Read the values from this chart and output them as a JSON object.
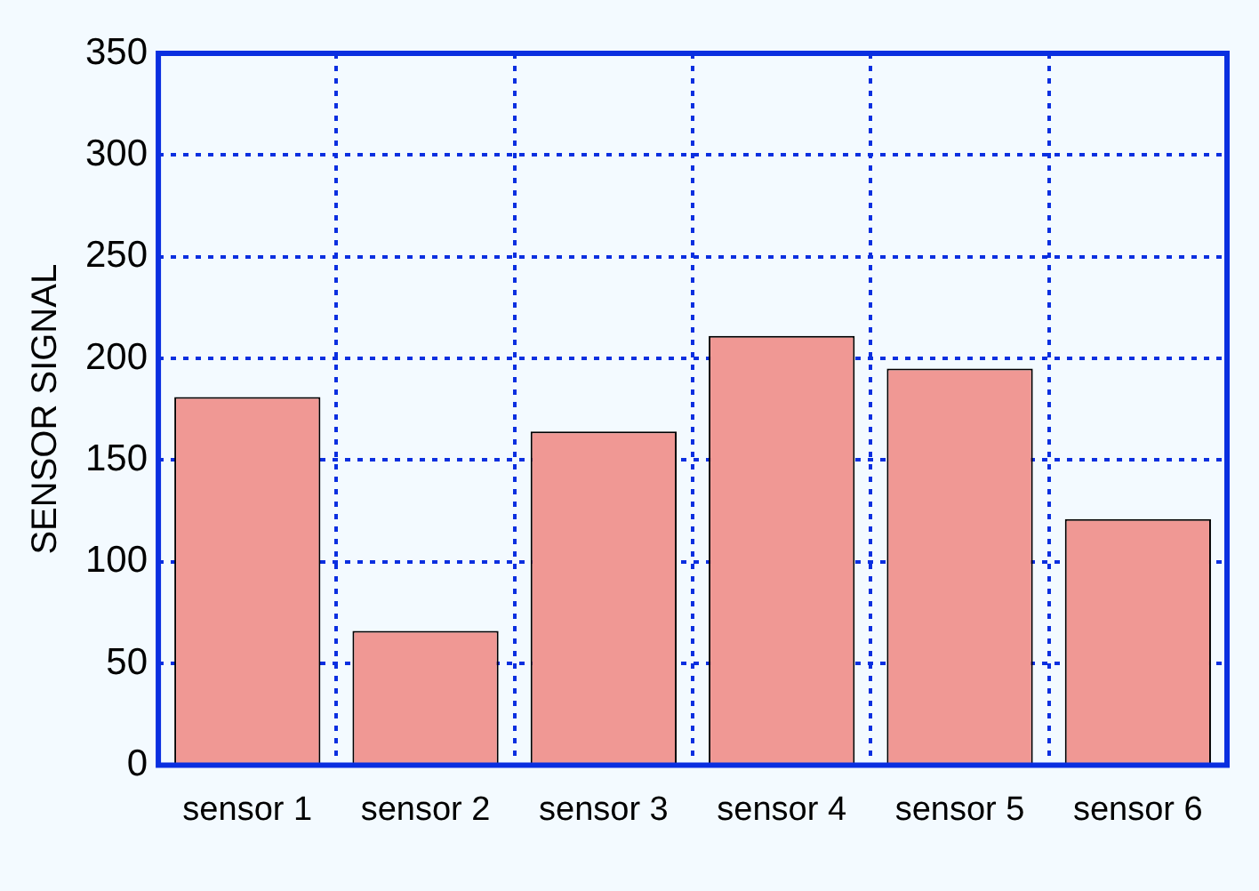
{
  "chart_data": {
    "type": "bar",
    "ylabel": "SENSOR SIGNAL",
    "categories": [
      "sensor 1",
      "sensor 2",
      "sensor 3",
      "sensor 4",
      "sensor 5",
      "sensor 6"
    ],
    "values": [
      181,
      66,
      164,
      211,
      195,
      121
    ],
    "color": "#f09894",
    "ylim": [
      0,
      350
    ],
    "yticks": [
      0,
      50,
      100,
      150,
      200,
      250,
      300,
      350
    ],
    "grid": true,
    "legend": false
  }
}
